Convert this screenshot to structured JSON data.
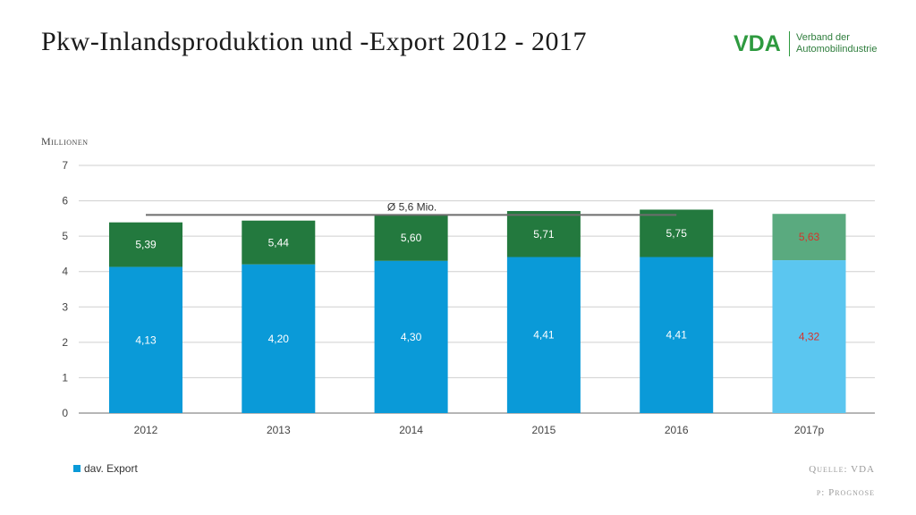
{
  "title": "Pkw-Inlandsproduktion und -Export 2012 - 2017",
  "logo": {
    "mark": "VDA",
    "line1": "Verband der",
    "line2": "Automobilindustrie"
  },
  "footer": {
    "source": "Quelle: VDA",
    "note": "p: Prognose"
  },
  "colors": {
    "export": "#0a9ad8",
    "export_forecast": "#5bc6f0",
    "production": "#23793e",
    "production_forecast": "#5aaa7f",
    "forecast_label": "#d4342b",
    "average_line": "#6d6d6d"
  },
  "chart_data": {
    "type": "bar",
    "stacked": true,
    "title": "Pkw-Inlandsproduktion und -Export 2012 - 2017",
    "ylabel": "Millionen",
    "ylim": [
      0,
      7
    ],
    "yticks": [
      0,
      1,
      2,
      3,
      4,
      5,
      6,
      7
    ],
    "grid": true,
    "categories": [
      "2012",
      "2013",
      "2014",
      "2015",
      "2016",
      "2017p"
    ],
    "forecast_category": "2017p",
    "series": [
      {
        "name": "dav. Export",
        "values": [
          4.13,
          4.2,
          4.3,
          4.41,
          4.41,
          4.32
        ],
        "labels": [
          "4,13",
          "4,20",
          "4,30",
          "4,41",
          "4,41",
          "4,32"
        ]
      },
      {
        "name": "",
        "totals": [
          5.39,
          5.44,
          5.6,
          5.71,
          5.75,
          5.63
        ],
        "labels": [
          "5,39",
          "5,44",
          "5,60",
          "5,71",
          "5,75",
          "5,63"
        ]
      }
    ],
    "average": {
      "value": 5.6,
      "label": "Ø 5,6 Mio."
    },
    "legend": {
      "placement": "bottom-left",
      "entries": [
        "dav. Export"
      ]
    }
  }
}
